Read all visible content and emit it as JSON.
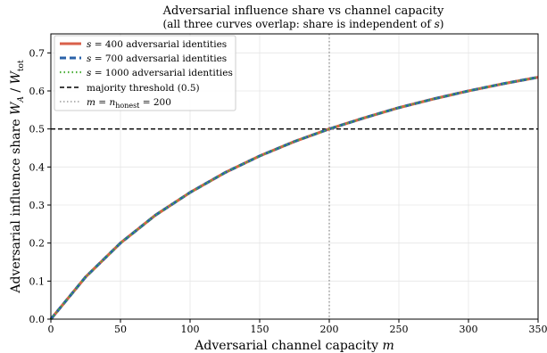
{
  "chart_data": {
    "type": "line",
    "title": "Adversarial influence share vs channel capacity",
    "subtitle_prefix": "(all three curves overlap: share is independent of ",
    "subtitle_var": "s",
    "subtitle_suffix": ")",
    "xlabel_text": "Adversarial channel capacity ",
    "xlabel_var": "m",
    "ylabel_text": "Adversarial influence share ",
    "ylabel_math_w": "W",
    "ylabel_math_a": "A",
    "ylabel_math_slash": " / ",
    "ylabel_math_tot": "tot",
    "xlim": [
      0,
      350
    ],
    "ylim": [
      0,
      0.75
    ],
    "xticks": [
      0,
      50,
      100,
      150,
      200,
      250,
      300,
      350
    ],
    "yticks": [
      0.0,
      0.1,
      0.2,
      0.3,
      0.4,
      0.5,
      0.6,
      0.7
    ],
    "xtick_labels": [
      "0",
      "50",
      "100",
      "150",
      "200",
      "250",
      "300",
      "350"
    ],
    "ytick_labels": [
      "0.0",
      "0.1",
      "0.2",
      "0.3",
      "0.4",
      "0.5",
      "0.6",
      "0.7"
    ],
    "grid": true,
    "legend_position": "top-left",
    "x": [
      0,
      25,
      50,
      75,
      100,
      125,
      150,
      175,
      200,
      225,
      250,
      275,
      300,
      325,
      350
    ],
    "series": [
      {
        "name_var": "s",
        "name_value": " = 400",
        "name_suffix": " adversarial identities",
        "color": "#d9604a",
        "style": "solid",
        "y": [
          0,
          0.111,
          0.2,
          0.273,
          0.333,
          0.385,
          0.429,
          0.467,
          0.5,
          0.529,
          0.556,
          0.579,
          0.6,
          0.619,
          0.636
        ]
      },
      {
        "name_var": "s",
        "name_value": " = 700",
        "name_suffix": " adversarial identities",
        "color": "#2a62a8",
        "style": "dashed",
        "y": [
          0,
          0.111,
          0.2,
          0.273,
          0.333,
          0.385,
          0.429,
          0.467,
          0.5,
          0.529,
          0.556,
          0.579,
          0.6,
          0.619,
          0.636
        ]
      },
      {
        "name_var": "s",
        "name_value": " = 1000",
        "name_suffix": " adversarial identities",
        "color": "#4caf3a",
        "style": "dotted",
        "y": [
          0,
          0.111,
          0.2,
          0.273,
          0.333,
          0.385,
          0.429,
          0.467,
          0.5,
          0.529,
          0.556,
          0.579,
          0.6,
          0.619,
          0.636
        ]
      }
    ],
    "reference_lines": [
      {
        "kind": "horizontal",
        "value": 0.5,
        "label": "majority threshold (0.5)",
        "color": "#000000",
        "style": "dashed"
      },
      {
        "kind": "vertical",
        "value": 200,
        "label_var": "m",
        "label_eq": " = ",
        "label_n": "n",
        "label_sub": "honest",
        "label_value": " = 200",
        "color": "#888888",
        "style": "dotted"
      }
    ]
  }
}
